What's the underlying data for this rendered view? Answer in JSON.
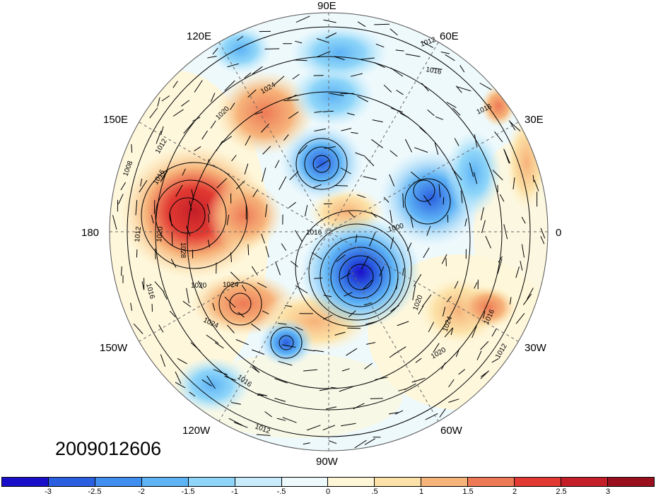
{
  "map": {
    "projection": "north-polar-stereographic",
    "longitude_labels": {
      "lon_0": "0",
      "lon_30e": "30E",
      "lon_60e": "60E",
      "lon_90e": "90E",
      "lon_120e": "120E",
      "lon_150e": "150E",
      "lon_180": "180",
      "lon_150w": "150W",
      "lon_120w": "120W",
      "lon_90w": "90W",
      "lon_60w": "60W",
      "lon_30w": "30W"
    },
    "contour_labels": {
      "c1012_a": "1012",
      "c1016_a": "1016",
      "c1016_b": "1016",
      "c1024_a": "1024",
      "c1020_a": "1020",
      "c1012_b": "1012",
      "c1008_a": "1008",
      "c1016_c": "1016",
      "c1012_c": "1012",
      "c1020_b": "1020",
      "c1028_a": "1028",
      "c1016_d": "1016",
      "c1020_c": "1020",
      "c1024_b": "1024",
      "c1024_c": "1024",
      "c1016_e": "1016",
      "c1012_d": "1012",
      "c1016_f": "1016",
      "c1000_a": "1000",
      "c1020_d": "1020",
      "c1024_d": "1024",
      "c1020_e": "1020",
      "c1016_g": "1016",
      "c1012_e": "1012"
    },
    "timestamp": "2009012606"
  },
  "colorbar": {
    "colors": [
      "#1a0fc9",
      "#2a5fe0",
      "#3f8ef0",
      "#5eb3f5",
      "#8ed5f9",
      "#c8ecfb",
      "#eef9fc",
      "#fff6d8",
      "#fce2a8",
      "#f6b37a",
      "#ee7a55",
      "#e23a32",
      "#c41f28",
      "#9a0f1e"
    ],
    "labels": [
      "-3",
      "-2.5",
      "-2",
      "-1.5",
      "-1",
      "-.5",
      "0",
      ".5",
      "1",
      "1.5",
      "2",
      "2.5",
      "3"
    ]
  }
}
